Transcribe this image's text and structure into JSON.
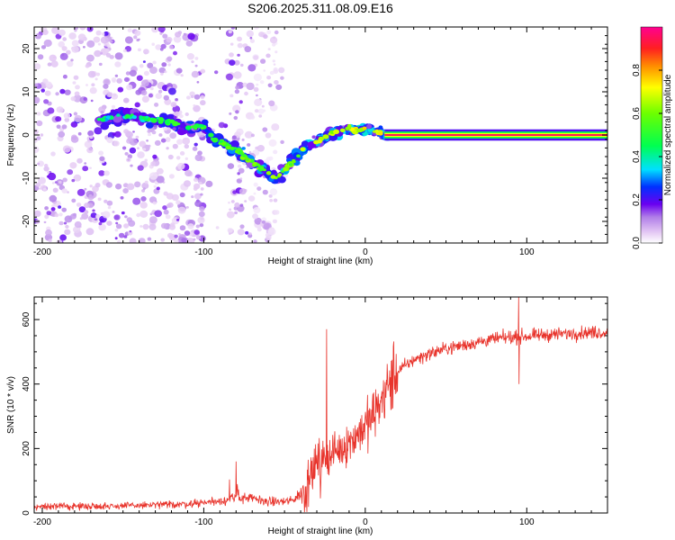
{
  "title": "S206.2025.311.08.09.E16",
  "colors": {
    "snr_line": "#e8342c",
    "axis": "#000000"
  },
  "chart_data": [
    {
      "type": "heatmap",
      "name": "spectrogram",
      "xlabel": "Height of straight line (km)",
      "ylabel": "Frequency (Hz)",
      "xlim": [
        -205,
        150
      ],
      "ylim": [
        -25,
        25
      ],
      "xticks": [
        -200,
        -100,
        0,
        100
      ],
      "xtick_labels": [
        "-200",
        "-100",
        "0",
        "100"
      ],
      "yticks": [
        -20,
        -10,
        0,
        10,
        20
      ],
      "ytick_labels": [
        "-20",
        "-10",
        "0",
        "10",
        "20"
      ],
      "ridge": {
        "x": [
          -165,
          -150,
          -140,
          -130,
          -120,
          -110,
          -100,
          -95,
          -90,
          -85,
          -80,
          -75,
          -70,
          -65,
          -60,
          -55,
          -50,
          -45,
          -40,
          -35,
          -30,
          -25,
          -20,
          -15,
          -10,
          -5,
          0,
          5,
          10,
          15
        ],
        "freq": [
          3.5,
          4.5,
          4.0,
          3.5,
          3.0,
          1.5,
          2.0,
          -0.5,
          -1.5,
          -2.5,
          -3.5,
          -5.0,
          -6.5,
          -7.5,
          -9.0,
          -10.0,
          -8.5,
          -6.0,
          -4.0,
          -2.0,
          -1.5,
          -0.5,
          0.5,
          1.0,
          1.5,
          1.0,
          1.5,
          1.0,
          0.5,
          0.0
        ]
      },
      "carrier": {
        "x_start": 12,
        "x_end": 150,
        "freq": 0.0,
        "amplitude": 0.95
      },
      "noise_region": {
        "x_start": -205,
        "x_end": -50
      }
    },
    {
      "type": "colorbar",
      "name": "colorbar",
      "label": "Normalized spectral amplitude",
      "range": [
        0.0,
        1.0
      ],
      "ticks": [
        0.0,
        0.2,
        0.4,
        0.6,
        0.8
      ],
      "tick_labels": [
        "0.0",
        "0.2",
        "0.4",
        "0.6",
        "0.8"
      ],
      "stops": [
        {
          "v": 0.0,
          "color": "#ffffff"
        },
        {
          "v": 0.05,
          "color": "#e4c8f4"
        },
        {
          "v": 0.12,
          "color": "#b07ee8"
        },
        {
          "v": 0.18,
          "color": "#6a00f0"
        },
        {
          "v": 0.26,
          "color": "#0030ff"
        },
        {
          "v": 0.34,
          "color": "#00e0ff"
        },
        {
          "v": 0.45,
          "color": "#00ff50"
        },
        {
          "v": 0.6,
          "color": "#6cff00"
        },
        {
          "v": 0.72,
          "color": "#ffff00"
        },
        {
          "v": 0.82,
          "color": "#ff8c00"
        },
        {
          "v": 0.9,
          "color": "#ff2020"
        },
        {
          "v": 1.0,
          "color": "#ff0090"
        }
      ]
    },
    {
      "type": "line",
      "name": "snr",
      "xlabel": "Height of straight line (km)",
      "ylabel": "SNR (10 * v/v)",
      "xlim": [
        -205,
        150
      ],
      "ylim": [
        0,
        670
      ],
      "xticks": [
        -200,
        -100,
        0,
        100
      ],
      "xtick_labels": [
        "-200",
        "-100",
        "0",
        "100"
      ],
      "yticks": [
        0,
        200,
        400,
        600
      ],
      "ytick_labels": [
        "0",
        "200",
        "400",
        "600"
      ],
      "trend": {
        "x": [
          -205,
          -150,
          -110,
          -90,
          -80,
          -70,
          -60,
          -50,
          -45,
          -40,
          -35,
          -30,
          -25,
          -20,
          -15,
          -10,
          -5,
          0,
          5,
          10,
          15,
          20,
          30,
          40,
          50,
          60,
          70,
          80,
          90,
          100,
          110,
          120,
          130,
          140,
          150
        ],
        "y": [
          20,
          22,
          28,
          38,
          45,
          45,
          35,
          35,
          40,
          60,
          130,
          160,
          180,
          190,
          200,
          220,
          245,
          270,
          300,
          350,
          400,
          440,
          475,
          495,
          510,
          520,
          530,
          540,
          545,
          548,
          552,
          555,
          558,
          560,
          560
        ]
      },
      "spikes": [
        {
          "x": -80,
          "y": 160
        },
        {
          "x": -24,
          "y": 570
        },
        {
          "x": 95,
          "y": 670
        },
        {
          "x": 95,
          "y": 400
        }
      ]
    }
  ]
}
